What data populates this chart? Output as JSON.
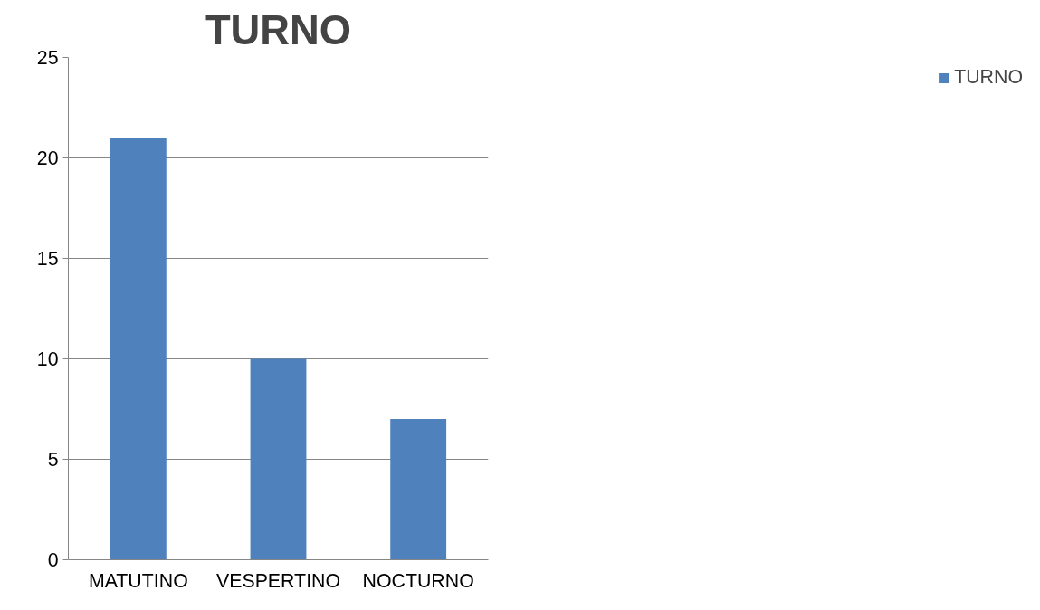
{
  "chart_data": {
    "type": "bar",
    "title": "TURNO",
    "categories": [
      "MATUTINO",
      "VESPERTINO",
      "NOCTURNO"
    ],
    "series": [
      {
        "name": "TURNO",
        "color": "#4f81bd",
        "values": [
          21,
          10,
          7
        ]
      }
    ],
    "ylim": [
      0,
      25
    ],
    "yticks": [
      0,
      5,
      10,
      15,
      20,
      25
    ],
    "grid": "y",
    "legend": "right"
  }
}
